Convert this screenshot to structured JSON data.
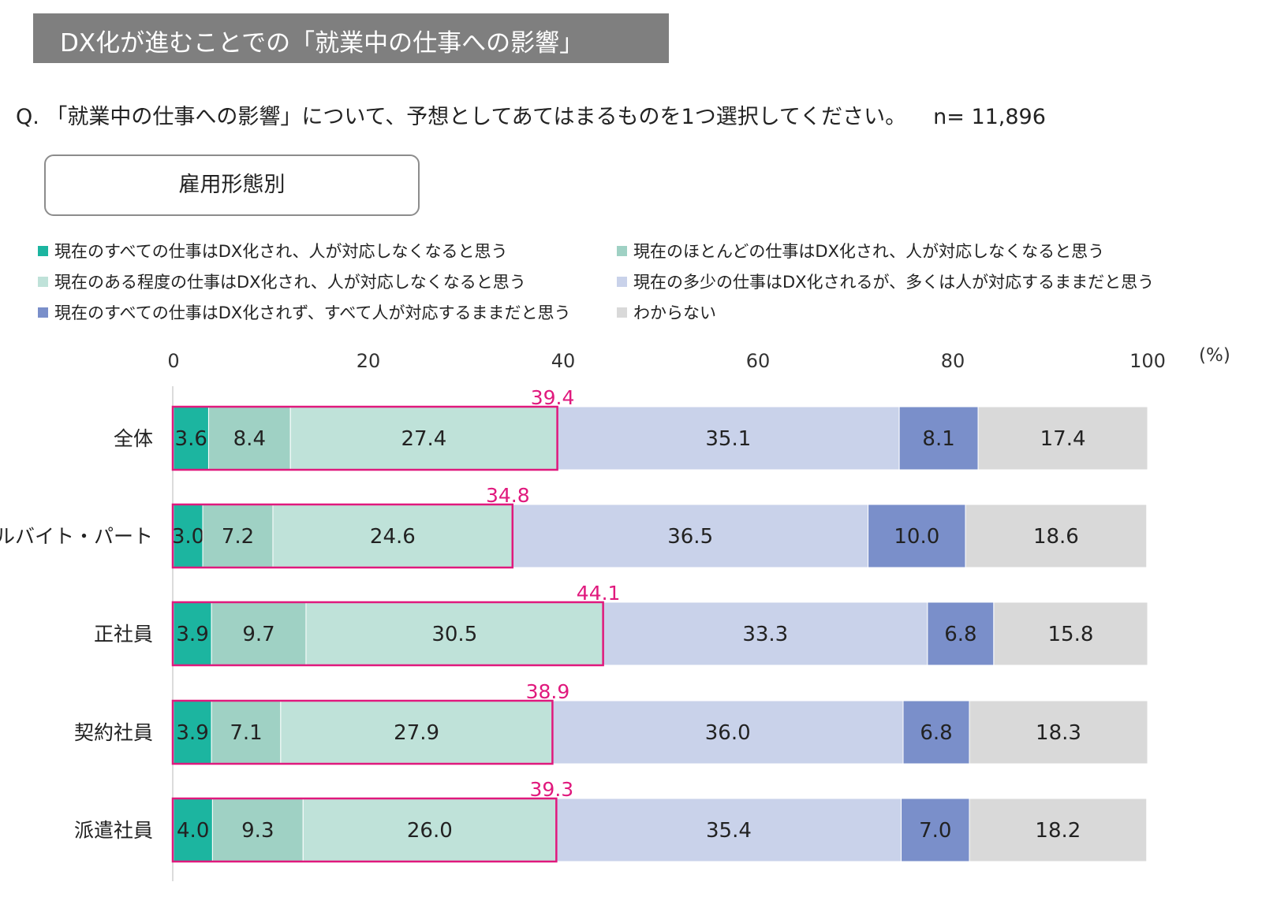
{
  "header": {
    "title": "DX化が進むことでの「就業中の仕事への影響」",
    "question": "Q. 「就業中の仕事への影響」について、予想としてあてはまるものを1つ選択してください。",
    "n": "n= 11,896",
    "group_label": "雇用形態別"
  },
  "colors": {
    "highlight": "#e0197d",
    "series": [
      "#1cb5a0",
      "#9fd1c4",
      "#bfe2d9",
      "#c9d2ea",
      "#7a8fca",
      "#d9d9d9"
    ]
  },
  "chart_data": {
    "type": "bar",
    "orientation": "horizontal",
    "stacked": true,
    "unit": "(%)",
    "xlim": [
      0,
      100
    ],
    "xticks": [
      0,
      20,
      40,
      60,
      80,
      100
    ],
    "legend_position": "top",
    "categories": [
      "全体",
      "アルバイト・パート",
      "正社員",
      "契約社員",
      "派遣社員"
    ],
    "series": [
      {
        "name": "現在のすべての仕事はDX化され、人が対応しなくなると思う",
        "values": [
          3.6,
          3.0,
          3.9,
          3.9,
          4.0
        ]
      },
      {
        "name": "現在のほとんどの仕事はDX化され、人が対応しなくなると思う",
        "values": [
          8.4,
          7.2,
          9.7,
          7.1,
          9.3
        ]
      },
      {
        "name": "現在のある程度の仕事はDX化され、人が対応しなくなると思う",
        "values": [
          27.4,
          24.6,
          30.5,
          27.9,
          26.0
        ]
      },
      {
        "name": "現在の多少の仕事はDX化されるが、多くは人が対応するままだと思う",
        "values": [
          35.1,
          36.5,
          33.3,
          36.0,
          35.4
        ]
      },
      {
        "name": "現在のすべての仕事はDX化されず、すべて人が対応するままだと思う",
        "values": [
          8.1,
          10.0,
          6.8,
          6.8,
          7.0
        ]
      },
      {
        "name": "わからない",
        "values": [
          17.4,
          18.6,
          15.8,
          18.3,
          18.2
        ]
      }
    ],
    "highlight_totals": [
      39.4,
      34.8,
      44.1,
      38.9,
      39.3
    ]
  }
}
